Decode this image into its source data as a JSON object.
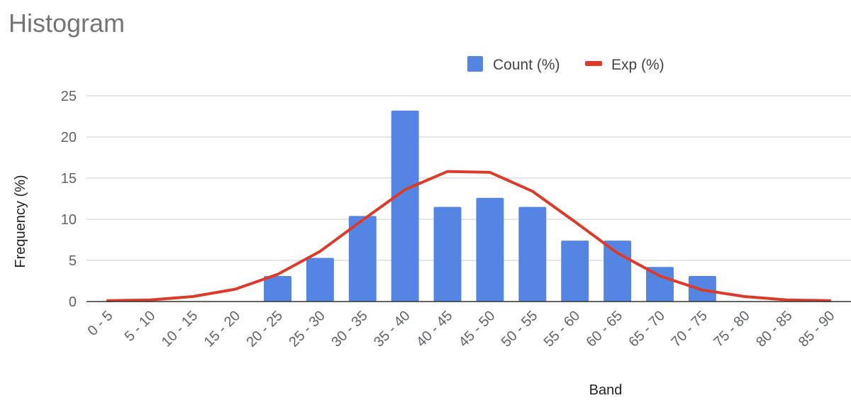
{
  "chart_data": {
    "type": "bar",
    "title": "Histogram",
    "xlabel": "Band",
    "ylabel": "Frequency (%)",
    "ylim": [
      0,
      25
    ],
    "yticks": [
      0,
      5,
      10,
      15,
      20,
      25
    ],
    "grid": true,
    "legend_position": "top",
    "categories": [
      "0 - 5",
      "5 - 10",
      "10 - 15",
      "15 - 20",
      "20 - 25",
      "25 - 30",
      "30 - 35",
      "35 - 40",
      "40 - 45",
      "45 - 50",
      "50 - 55",
      "55 - 60",
      "60 - 65",
      "65 - 70",
      "70 - 75",
      "75 - 80",
      "80 - 85",
      "85 - 90"
    ],
    "series": [
      {
        "name": "Count (%)",
        "type": "bar",
        "color": "#5585e2",
        "values": [
          0,
          0,
          0,
          0,
          3.1,
          5.3,
          10.4,
          23.2,
          11.5,
          12.6,
          11.5,
          7.4,
          7.4,
          4.2,
          3.1,
          0,
          0,
          0
        ]
      },
      {
        "name": "Exp (%)",
        "type": "line",
        "color": "#db3b2b",
        "values": [
          0.1,
          0.2,
          0.6,
          1.5,
          3.3,
          6.1,
          9.9,
          13.6,
          15.8,
          15.7,
          13.4,
          9.7,
          5.9,
          3.1,
          1.4,
          0.6,
          0.2,
          0.1
        ]
      }
    ]
  }
}
